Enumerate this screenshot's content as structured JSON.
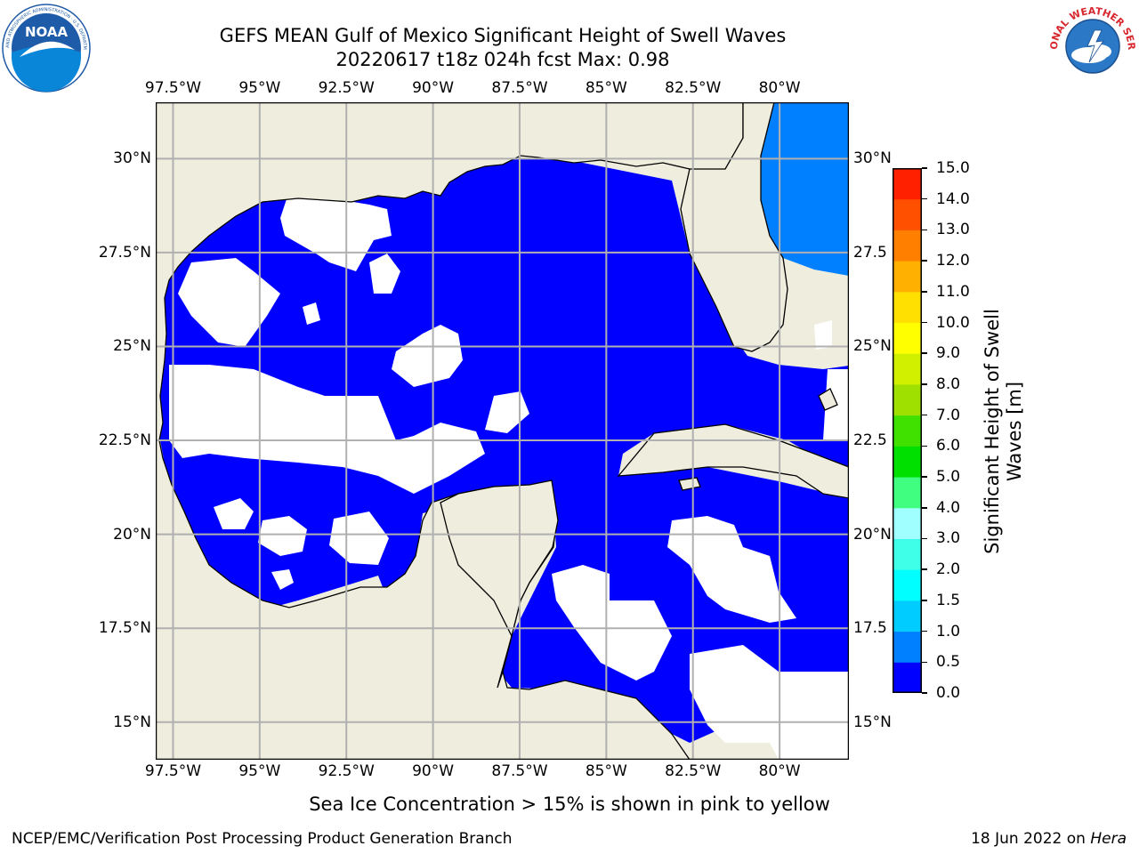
{
  "header": {
    "title_line1": "GEFS MEAN Gulf of Mexico Significant Height of Swell Waves",
    "title_line2": "20220617 t18z 024h fcst   Max: 0.98"
  },
  "logos": {
    "left": {
      "name": "NOAA",
      "text": "NOAA",
      "ring_text": "NATIONAL OCEANIC AND ATMOSPHERIC ADMINISTRATION · U.S. DEPARTMENT OF COMMERCE",
      "colors": {
        "ring": "#ffffff",
        "sky": "#1e5ba8",
        "bird": "#ffffff",
        "water": "#0a86d8"
      }
    },
    "right": {
      "name": "National Weather Service",
      "ring_text": "NATIONAL WEATHER SERVICE",
      "colors": {
        "text": "#d8282e",
        "sky": "#2a78c6",
        "cloud": "#ffffff",
        "bolt": "#ffffff"
      }
    }
  },
  "map": {
    "extent_lon": [
      -98.0,
      -78.0
    ],
    "extent_lat": [
      14.0,
      31.5
    ],
    "lon_ticks": [
      -97.5,
      -95.0,
      -92.5,
      -90.0,
      -87.5,
      -85.0,
      -82.5,
      -80.0
    ],
    "lat_ticks": [
      15.0,
      17.5,
      20.0,
      22.5,
      25.0,
      27.5,
      30.0
    ],
    "lon_tick_labels": [
      "97.5°W",
      "95°W",
      "92.5°W",
      "90°W",
      "87.5°W",
      "85°W",
      "82.5°W",
      "80°W"
    ],
    "lat_tick_labels_left": [
      "15°N",
      "17.5°N",
      "20°N",
      "22.5°N",
      "25°N",
      "27.5°N",
      "30°N"
    ],
    "lat_tick_labels_right": [
      "15°N",
      "17.5",
      "20°N",
      "22.5",
      "25°N",
      "27.5",
      "30°N"
    ],
    "grid": true,
    "land_color": "#eeedde",
    "low_class_color": "#0000ff",
    "second_class_color": "#0080ff",
    "calm_color": "#ffffff",
    "coastline_color": "#000000"
  },
  "colorbar": {
    "label": "Significant Height of Swell Waves [m]",
    "bounds": [
      0.0,
      0.5,
      1.0,
      1.5,
      2.0,
      3.0,
      4.0,
      5.0,
      6.0,
      7.0,
      8.0,
      9.0,
      10.0,
      11.0,
      12.0,
      13.0,
      14.0,
      15.0
    ],
    "tick_labels": [
      "0.0",
      "0.5",
      "1.0",
      "1.5",
      "2.0",
      "3.0",
      "4.0",
      "5.0",
      "6.0",
      "7.0",
      "8.0",
      "9.0",
      "10.0",
      "11.0",
      "12.0",
      "13.0",
      "14.0",
      "15.0"
    ],
    "colors": [
      "#0000ff",
      "#0080ff",
      "#00ccff",
      "#00ffff",
      "#40ffe8",
      "#a0ffff",
      "#40ff80",
      "#00e000",
      "#40e000",
      "#a0e000",
      "#d0f000",
      "#ffff00",
      "#ffe000",
      "#ffb000",
      "#ff8000",
      "#ff5000",
      "#ff2000"
    ]
  },
  "note": "Sea Ice Concentration > 15% is shown in pink to yellow",
  "footer": {
    "left": "NCEP/EMC/Verification Post Processing Product Generation Branch",
    "right_prefix": "18 Jun 2022 on ",
    "right_machine": "Hera"
  }
}
